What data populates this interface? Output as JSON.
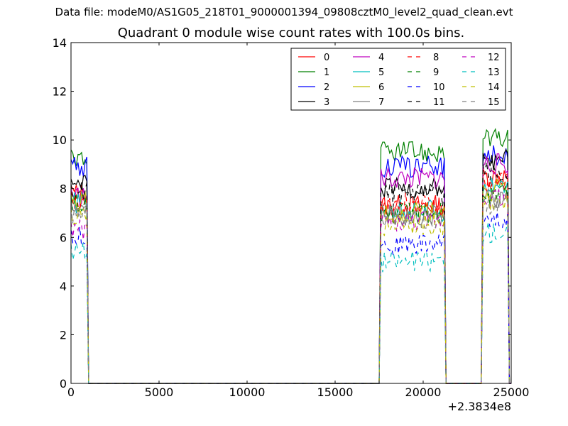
{
  "header": {
    "file_label": "Data file: modeM0/AS1G05_218T01_9000001394_09808cztM0_level2_quad_clean.evt",
    "title": "Quadrant 0 module wise count rates with 100.0s bins."
  },
  "chart_data": {
    "type": "line",
    "xlabel": "",
    "ylabel": "",
    "x_offset_label": "+2.3834e8",
    "xlim": [
      0,
      25000
    ],
    "ylim": [
      0,
      14
    ],
    "x_ticks": [
      "0",
      "5000",
      "10000",
      "15000",
      "20000",
      "25000"
    ],
    "y_ticks": [
      "0",
      "2",
      "4",
      "6",
      "8",
      "10",
      "12",
      "14"
    ],
    "grid": false,
    "legend_position": "top-right",
    "bin_width": 100,
    "segments": [
      {
        "start": 0,
        "end": 1000
      },
      {
        "start": 17500,
        "end": 21300
      },
      {
        "start": 23300,
        "end": 24900
      }
    ],
    "series": [
      {
        "name": "0",
        "color": "#ff0000",
        "dash": "solid",
        "levels": [
          7.8,
          7.3,
          8.5
        ]
      },
      {
        "name": "1",
        "color": "#008000",
        "dash": "solid",
        "levels": [
          9.3,
          9.5,
          10.0
        ]
      },
      {
        "name": "2",
        "color": "#0000ff",
        "dash": "solid",
        "levels": [
          8.9,
          8.9,
          9.4
        ]
      },
      {
        "name": "3",
        "color": "#000000",
        "dash": "solid",
        "levels": [
          8.1,
          8.0,
          9.2
        ]
      },
      {
        "name": "4",
        "color": "#bf00bf",
        "dash": "solid",
        "levels": [
          7.7,
          8.4,
          9.0
        ]
      },
      {
        "name": "5",
        "color": "#00bfbf",
        "dash": "solid",
        "levels": [
          7.4,
          7.1,
          8.2
        ]
      },
      {
        "name": "6",
        "color": "#bfbf00",
        "dash": "solid",
        "levels": [
          7.5,
          7.0,
          8.0
        ]
      },
      {
        "name": "7",
        "color": "#808080",
        "dash": "solid",
        "levels": [
          7.2,
          6.9,
          7.6
        ]
      },
      {
        "name": "8",
        "color": "#ff0000",
        "dash": "dashed",
        "levels": [
          7.6,
          7.4,
          8.3
        ]
      },
      {
        "name": "9",
        "color": "#008000",
        "dash": "dashed",
        "levels": [
          7.3,
          7.0,
          7.7
        ]
      },
      {
        "name": "10",
        "color": "#0000ff",
        "dash": "dashed",
        "levels": [
          6.0,
          5.7,
          6.8
        ]
      },
      {
        "name": "11",
        "color": "#000000",
        "dash": "dashed",
        "levels": [
          7.9,
          7.7,
          8.7
        ]
      },
      {
        "name": "12",
        "color": "#bf00bf",
        "dash": "dashed",
        "levels": [
          6.3,
          6.6,
          7.6
        ]
      },
      {
        "name": "13",
        "color": "#00bfbf",
        "dash": "dashed",
        "levels": [
          5.4,
          5.0,
          6.2
        ]
      },
      {
        "name": "14",
        "color": "#bfbf00",
        "dash": "dashed",
        "levels": [
          6.9,
          6.5,
          7.5
        ]
      },
      {
        "name": "15",
        "color": "#808080",
        "dash": "dashed",
        "levels": [
          7.0,
          6.8,
          7.4
        ]
      }
    ]
  }
}
